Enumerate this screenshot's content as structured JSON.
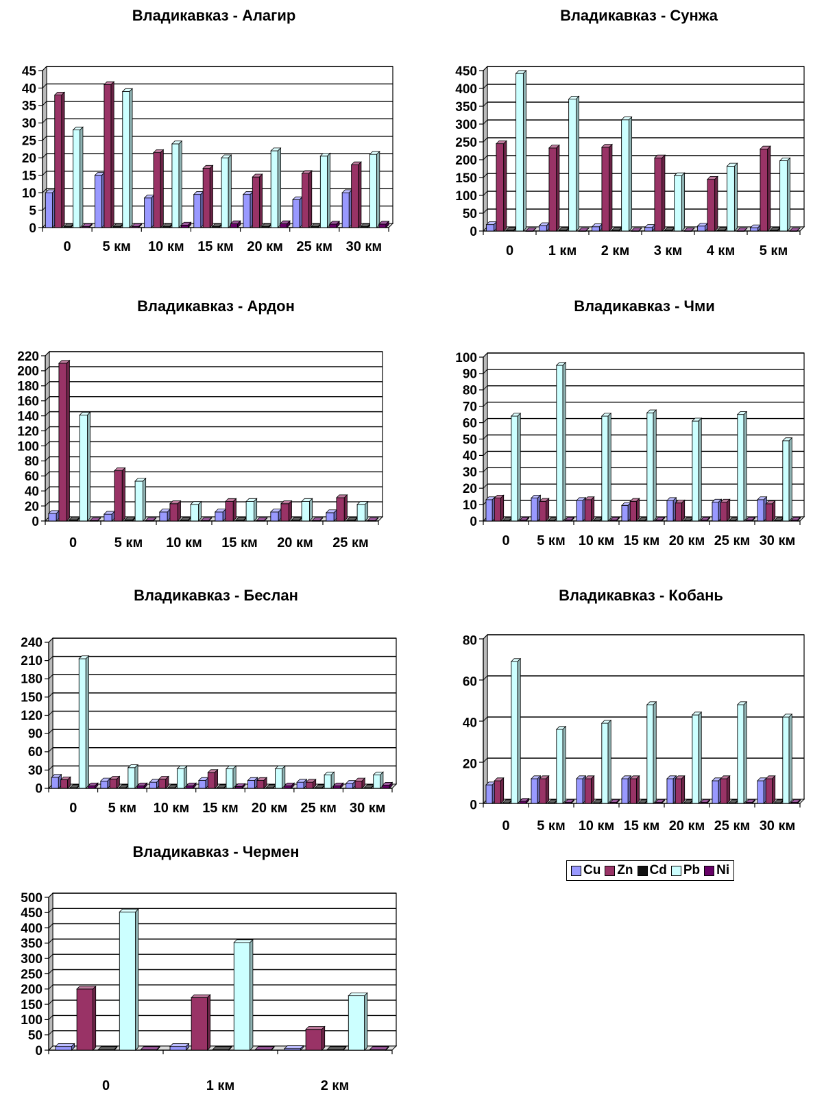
{
  "colors": {
    "Cu": "#9999ff",
    "Zn": "#993366",
    "Cd": "#111111",
    "Pb": "#ccffff",
    "Ni": "#660066"
  },
  "legend": [
    {
      "name": "Cu",
      "color": "#9999ff"
    },
    {
      "name": "Zn",
      "color": "#993366"
    },
    {
      "name": "Cd",
      "color": "#111111"
    },
    {
      "name": "Pb",
      "color": "#ccffff"
    },
    {
      "name": "Ni",
      "color": "#660066"
    }
  ],
  "chart_data": [
    {
      "type": "bar",
      "title": "Владикавказ - Алагир",
      "categories": [
        "0",
        "5 км",
        "10 км",
        "15 км",
        "20 км",
        "25 км",
        "30 км"
      ],
      "ylim": [
        0,
        45
      ],
      "yticks": [
        "0",
        "5",
        "10",
        "15",
        "20",
        "25",
        "30",
        "35",
        "40",
        "45"
      ],
      "series": [
        {
          "name": "Cu",
          "values": [
            10,
            15,
            8.5,
            9.5,
            9.5,
            8,
            10
          ]
        },
        {
          "name": "Zn",
          "values": [
            38,
            41,
            21.5,
            17,
            14.5,
            15.5,
            18
          ]
        },
        {
          "name": "Cd",
          "values": [
            0.3,
            0.3,
            0.3,
            0.3,
            0.3,
            0.3,
            0.3
          ]
        },
        {
          "name": "Pb",
          "values": [
            28,
            39,
            24,
            20,
            22,
            20.5,
            21
          ]
        },
        {
          "name": "Ni",
          "values": [
            0.3,
            0.3,
            0.7,
            1.1,
            1.1,
            1.0,
            1.0
          ]
        }
      ]
    },
    {
      "type": "bar",
      "title": "Владикавказ - Сунжа",
      "categories": [
        "0",
        "1 км",
        "2 км",
        "3 км",
        "4 км",
        "5 км"
      ],
      "ylim": [
        0,
        450
      ],
      "yticks": [
        "0",
        "50",
        "100",
        "150",
        "200",
        "250",
        "300",
        "350",
        "400",
        "450"
      ],
      "series": [
        {
          "name": "Cu",
          "values": [
            18,
            15,
            12,
            10,
            14,
            9
          ]
        },
        {
          "name": "Zn",
          "values": [
            245,
            233,
            235,
            205,
            145,
            230
          ]
        },
        {
          "name": "Cd",
          "values": [
            2,
            2,
            2,
            2,
            2,
            2
          ]
        },
        {
          "name": "Pb",
          "values": [
            442,
            370,
            312,
            155,
            182,
            197
          ]
        },
        {
          "name": "Ni",
          "values": [
            0.5,
            0.5,
            0.5,
            0.5,
            0.5,
            0.5
          ]
        }
      ]
    },
    {
      "type": "bar",
      "title": "Владикавказ - Ардон",
      "categories": [
        "0",
        "5 км",
        "10 км",
        "15 км",
        "20 км",
        "25 км"
      ],
      "ylim": [
        0,
        220
      ],
      "yticks": [
        "0",
        "20",
        "40",
        "60",
        "80",
        "100",
        "120",
        "140",
        "160",
        "180",
        "200",
        "220"
      ],
      "series": [
        {
          "name": "Cu",
          "values": [
            10,
            9,
            12,
            12,
            12,
            11
          ]
        },
        {
          "name": "Zn",
          "values": [
            210,
            67,
            23,
            26,
            23,
            31
          ]
        },
        {
          "name": "Cd",
          "values": [
            1.5,
            1.5,
            1,
            1,
            1,
            1
          ]
        },
        {
          "name": "Pb",
          "values": [
            141,
            53,
            22,
            26,
            26,
            22
          ]
        },
        {
          "name": "Ni",
          "values": [
            0.5,
            0.5,
            0.5,
            0.5,
            0.5,
            0.5
          ]
        }
      ]
    },
    {
      "type": "bar",
      "title": "Владикавказ - Чми",
      "categories": [
        "0",
        "5 км",
        "10 км",
        "15 км",
        "20 км",
        "25 км",
        "30 км"
      ],
      "ylim": [
        0,
        100
      ],
      "yticks": [
        "0",
        "10",
        "20",
        "30",
        "40",
        "50",
        "60",
        "70",
        "80",
        "90",
        "100"
      ],
      "series": [
        {
          "name": "Cu",
          "values": [
            13,
            14,
            12.5,
            9.5,
            12.5,
            11.5,
            13
          ]
        },
        {
          "name": "Zn",
          "values": [
            14,
            12,
            13,
            12,
            11,
            11.5,
            10.5
          ]
        },
        {
          "name": "Cd",
          "values": [
            0.3,
            0.3,
            0.3,
            0.3,
            0.3,
            0.3,
            0.3
          ]
        },
        {
          "name": "Pb",
          "values": [
            64,
            95,
            64,
            66,
            61,
            65,
            49
          ]
        },
        {
          "name": "Ni",
          "values": [
            0.5,
            0.5,
            0.5,
            0.5,
            0.5,
            0.5,
            0.5
          ]
        }
      ]
    },
    {
      "type": "bar",
      "title": "Владикавказ - Беслан",
      "categories": [
        "0",
        "5 км",
        "10 км",
        "15 км",
        "20 км",
        "25 км",
        "30 км"
      ],
      "ylim": [
        0,
        240
      ],
      "yticks": [
        "0",
        "30",
        "60",
        "90",
        "120",
        "150",
        "180",
        "210",
        "240"
      ],
      "series": [
        {
          "name": "Cu",
          "values": [
            18,
            12,
            10,
            13,
            13,
            10,
            8
          ]
        },
        {
          "name": "Zn",
          "values": [
            14,
            15,
            15,
            26,
            13,
            10,
            12
          ]
        },
        {
          "name": "Cd",
          "values": [
            1,
            1,
            1,
            1,
            1,
            1,
            1
          ]
        },
        {
          "name": "Pb",
          "values": [
            213,
            34,
            32,
            32,
            32,
            22,
            22
          ]
        },
        {
          "name": "Ni",
          "values": [
            4,
            4,
            4,
            3,
            4,
            4,
            5
          ]
        }
      ]
    },
    {
      "type": "bar",
      "title": "Владикавказ - Кобань",
      "categories": [
        "0",
        "5 км",
        "10 км",
        "15 км",
        "20 км",
        "25 км",
        "30 км"
      ],
      "ylim": [
        0,
        80
      ],
      "yticks": [
        "0",
        "20",
        "40",
        "60",
        "80"
      ],
      "series": [
        {
          "name": "Cu",
          "values": [
            9,
            12,
            12,
            12,
            12,
            11,
            11
          ]
        },
        {
          "name": "Zn",
          "values": [
            11,
            12,
            12,
            12,
            12,
            12,
            12
          ]
        },
        {
          "name": "Cd",
          "values": [
            0.3,
            0.3,
            0.3,
            0.3,
            0.3,
            0.3,
            0.3
          ]
        },
        {
          "name": "Pb",
          "values": [
            69,
            36,
            39,
            48,
            43,
            48,
            42
          ]
        },
        {
          "name": "Ni",
          "values": [
            1,
            0.5,
            0.5,
            0.5,
            0.5,
            0.5,
            0.5
          ]
        }
      ]
    },
    {
      "type": "bar",
      "title": "Владикавказ - Чермен",
      "categories": [
        "0",
        "1 км",
        "2 км"
      ],
      "ylim": [
        0,
        500
      ],
      "yticks": [
        "0",
        "50",
        "100",
        "150",
        "200",
        "250",
        "300",
        "350",
        "400",
        "450",
        "500"
      ],
      "series": [
        {
          "name": "Cu",
          "values": [
            12,
            12,
            5
          ]
        },
        {
          "name": "Zn",
          "values": [
            200,
            172,
            68
          ]
        },
        {
          "name": "Cd",
          "values": [
            2,
            2,
            2
          ]
        },
        {
          "name": "Pb",
          "values": [
            452,
            352,
            178
          ]
        },
        {
          "name": "Ni",
          "values": [
            2,
            2,
            2
          ]
        }
      ]
    }
  ]
}
